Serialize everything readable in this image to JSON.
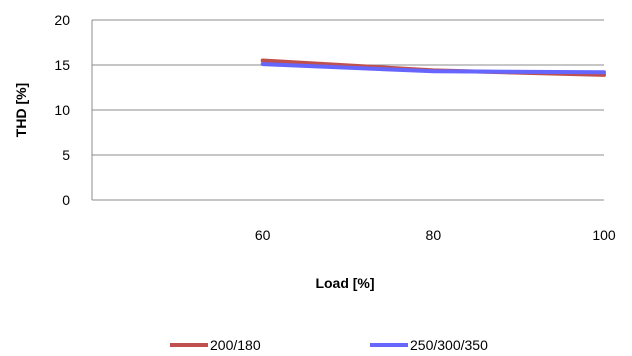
{
  "chart_data": {
    "type": "line",
    "xlabel": "Load [%]",
    "ylabel": "THD [%]",
    "x": [
      60,
      80,
      100
    ],
    "xlim": [
      40,
      100
    ],
    "ylim": [
      0,
      20
    ],
    "xticks": [
      60,
      80,
      100
    ],
    "yticks": [
      0,
      5,
      10,
      15,
      20
    ],
    "grid": "horizontal",
    "legend_position": "bottom",
    "series": [
      {
        "name": "200/180",
        "values": [
          15.5,
          14.4,
          13.9
        ],
        "color": "#c0504d"
      },
      {
        "name": "250/300/350",
        "values": [
          15.1,
          14.3,
          14.2
        ],
        "color": "#6666ff"
      }
    ]
  }
}
